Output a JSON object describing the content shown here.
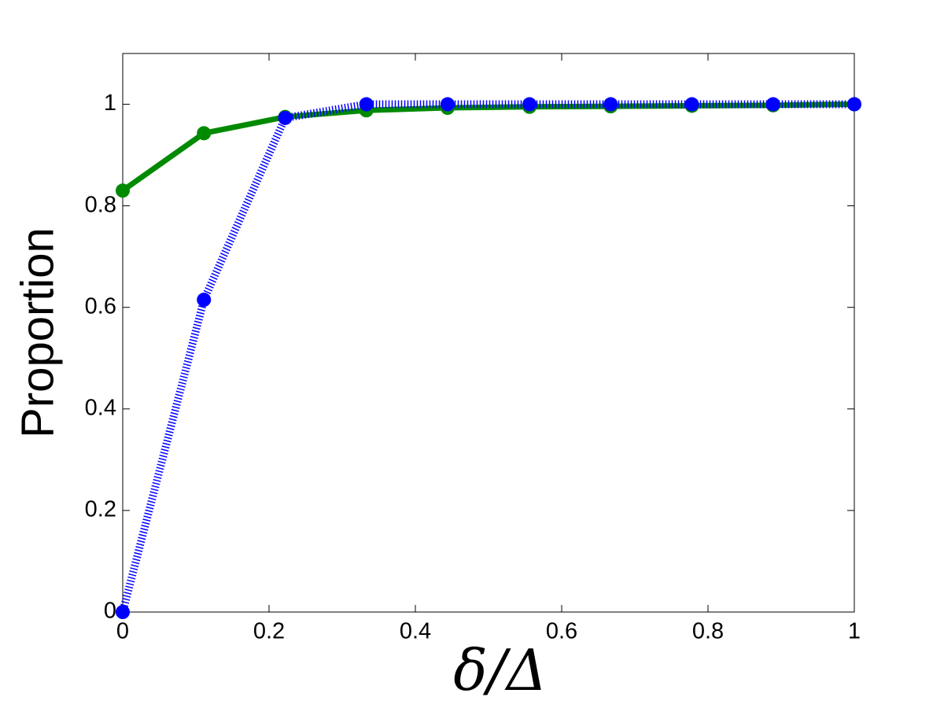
{
  "chart_data": {
    "type": "line",
    "x_label": "δ/Δ",
    "y_label": "Proportion",
    "x": [
      0,
      0.111,
      0.222,
      0.333,
      0.444,
      0.556,
      0.667,
      0.778,
      0.889,
      1
    ],
    "series": [
      {
        "color": "#008a00",
        "linestyle": "solid",
        "values": [
          0.83,
          0.943,
          0.975,
          0.988,
          0.993,
          0.995,
          0.996,
          0.997,
          0.998,
          1.0
        ]
      },
      {
        "color": "#0000ff",
        "linestyle": "dotted",
        "values": [
          0,
          0.615,
          0.973,
          1,
          1,
          1,
          1,
          1,
          1,
          1
        ]
      }
    ],
    "xlim": [
      0,
      1
    ],
    "ylim": [
      0,
      1.1
    ],
    "xticks": [
      0,
      0.2,
      0.4,
      0.6,
      0.8,
      1
    ],
    "yticks": [
      0,
      0.2,
      0.4,
      0.6,
      0.8,
      1
    ],
    "grid": false
  }
}
